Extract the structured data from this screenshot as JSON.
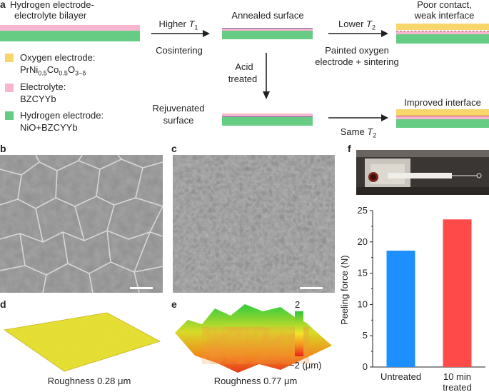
{
  "colors": {
    "oxygen_electrode": "#f8d66c",
    "electrolyte": "#f6b6d0",
    "hydrogen_electrode": "#66cc84",
    "bar_untreated": "#1e8fff",
    "bar_treated": "#ff4a4a"
  },
  "panel_a": {
    "label": "a",
    "bilayer_title_1": "Hydrogen electrode-",
    "bilayer_title_2": "electrolyte bilayer",
    "legend": [
      {
        "name": "Oxygen electrode:",
        "detail": "PrNi0.5Co0.5O3−δ",
        "color": "#f8d66c"
      },
      {
        "name": "Electrolyte:",
        "detail": "BZCYYb",
        "color": "#f6b6d0"
      },
      {
        "name": "Hydrogen electrode:",
        "detail": "NiO+BZCYYb",
        "color": "#66cc84"
      }
    ],
    "formula": {
      "base": "PrNi",
      "sub1": "0.5",
      "mid": "Co",
      "sub2": "0.5",
      "o": "O",
      "sub3": "3−δ"
    },
    "step1_top_prefix": "Higher ",
    "step1_top_var": "T",
    "step1_top_sub": "1",
    "step1_bottom": "Cosintering",
    "annealed_label": "Annealed surface",
    "step2_top_prefix": "Lower ",
    "step2_top_var": "T",
    "step2_top_sub": "2",
    "step2_bottom_1": "Painted oxygen",
    "step2_bottom_2": "electrode + sintering",
    "poor_label_1": "Poor contact,",
    "poor_label_2": "weak interface",
    "acid_1": "Acid",
    "acid_2": "treated",
    "rejuv_1": "Rejuvenated",
    "rejuv_2": "surface",
    "step3_bottom_prefix": "Same ",
    "step3_bottom_var": "T",
    "step3_bottom_sub": "2",
    "improved_label": "Improved interface"
  },
  "panel_b": {
    "label": "b"
  },
  "panel_c": {
    "label": "c"
  },
  "panel_d": {
    "label": "d",
    "roughness_prefix": "Roughness 0.28 ",
    "roughness_unit": "μm"
  },
  "panel_e": {
    "label": "e",
    "roughness_prefix": "Roughness 0.77 ",
    "roughness_unit": "μm",
    "colorbar_max": "2",
    "colorbar_min": "−2 (μm)"
  },
  "panel_f": {
    "label": "f"
  },
  "chart_data": {
    "type": "bar",
    "categories": [
      "Untreated",
      "10 min treated"
    ],
    "category_lines": [
      [
        "Untreated"
      ],
      [
        "10 min",
        "treated"
      ]
    ],
    "values": [
      18.6,
      23.6
    ],
    "colors": [
      "#1e8fff",
      "#ff4a4a"
    ],
    "ylabel": "Peeling force (N)",
    "ylim": [
      0,
      25
    ],
    "yticks": [
      0,
      5,
      10,
      15,
      20,
      25
    ]
  }
}
